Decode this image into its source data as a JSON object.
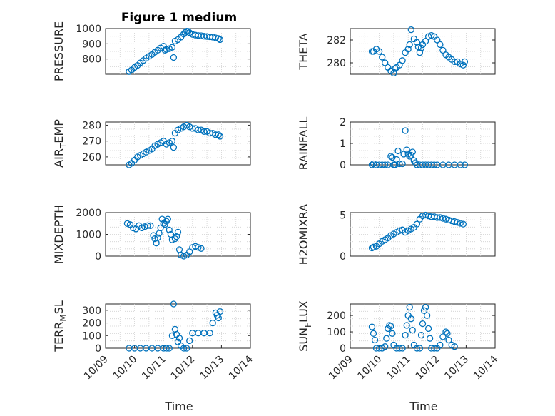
{
  "figure_title": "Figure 1 medium",
  "xlabel": "Time",
  "colors": {
    "marker": "#0072bd",
    "axis": "#262626",
    "grid": "#d0d0d0"
  },
  "chart_data": [
    {
      "type": "scatter",
      "marker": "circle",
      "ylabel": "PRESSURE",
      "ylim": [
        700,
        1000
      ],
      "yticks": [
        800,
        900,
        1000
      ],
      "yticklabels": [
        "800",
        "900",
        "1000"
      ],
      "xlim": [
        "10/09",
        "10/14"
      ],
      "xticks": [],
      "grid": "minor-dotted",
      "points": [
        [
          0.81,
          718
        ],
        [
          0.9,
          728
        ],
        [
          1.0,
          745
        ],
        [
          1.1,
          758
        ],
        [
          1.2,
          775
        ],
        [
          1.3,
          790
        ],
        [
          1.4,
          805
        ],
        [
          1.5,
          818
        ],
        [
          1.6,
          830
        ],
        [
          1.7,
          845
        ],
        [
          1.8,
          858
        ],
        [
          1.9,
          873
        ],
        [
          2.0,
          884
        ],
        [
          2.05,
          858
        ],
        [
          2.1,
          863
        ],
        [
          2.2,
          868
        ],
        [
          2.3,
          877
        ],
        [
          2.35,
          810
        ],
        [
          2.4,
          918
        ],
        [
          2.5,
          928
        ],
        [
          2.6,
          944
        ],
        [
          2.7,
          964
        ],
        [
          2.75,
          975
        ],
        [
          2.8,
          983
        ],
        [
          2.85,
          982
        ],
        [
          2.9,
          973
        ],
        [
          3.0,
          962
        ],
        [
          3.1,
          957
        ],
        [
          3.2,
          954
        ],
        [
          3.3,
          953
        ],
        [
          3.4,
          950
        ],
        [
          3.5,
          948
        ],
        [
          3.6,
          946
        ],
        [
          3.7,
          944
        ],
        [
          3.8,
          939
        ],
        [
          3.9,
          935
        ],
        [
          3.95,
          928
        ]
      ]
    },
    {
      "type": "scatter",
      "marker": "circle",
      "ylabel": "THETA",
      "ylim": [
        279,
        283
      ],
      "yticks": [
        280,
        282
      ],
      "yticklabels": [
        "280",
        "282"
      ],
      "xlim": [
        "10/09",
        "10/14"
      ],
      "xticks": [],
      "grid": "minor-dotted",
      "points": [
        [
          0.75,
          281.0
        ],
        [
          0.8,
          281.0
        ],
        [
          0.9,
          281.2
        ],
        [
          1.0,
          281.0
        ],
        [
          1.1,
          280.5
        ],
        [
          1.2,
          280.0
        ],
        [
          1.3,
          279.6
        ],
        [
          1.4,
          279.3
        ],
        [
          1.5,
          279.1
        ],
        [
          1.55,
          279.5
        ],
        [
          1.6,
          279.6
        ],
        [
          1.7,
          279.8
        ],
        [
          1.8,
          280.2
        ],
        [
          1.9,
          280.9
        ],
        [
          2.0,
          281.2
        ],
        [
          2.05,
          281.6
        ],
        [
          2.1,
          282.9
        ],
        [
          2.2,
          282.1
        ],
        [
          2.3,
          281.8
        ],
        [
          2.35,
          281.4
        ],
        [
          2.4,
          280.9
        ],
        [
          2.45,
          281.3
        ],
        [
          2.5,
          281.6
        ],
        [
          2.6,
          281.9
        ],
        [
          2.7,
          282.3
        ],
        [
          2.8,
          282.4
        ],
        [
          2.9,
          282.3
        ],
        [
          3.0,
          282.0
        ],
        [
          3.1,
          281.6
        ],
        [
          3.2,
          281.1
        ],
        [
          3.3,
          280.7
        ],
        [
          3.4,
          280.5
        ],
        [
          3.5,
          280.3
        ],
        [
          3.6,
          280.1
        ],
        [
          3.7,
          280.1
        ],
        [
          3.8,
          279.9
        ],
        [
          3.9,
          279.8
        ],
        [
          3.95,
          280.1
        ]
      ]
    },
    {
      "type": "scatter",
      "marker": "circle",
      "ylabel": "AIR_TEMP",
      "ylabel_display": [
        "AIR",
        "T",
        "EMP"
      ],
      "ylim": [
        255,
        282
      ],
      "yticks": [
        260,
        270,
        280
      ],
      "yticklabels": [
        "260",
        "270",
        "280"
      ],
      "xlim": [
        "10/09",
        "10/14"
      ],
      "xticks": [],
      "grid": "minor-dotted",
      "points": [
        [
          0.81,
          255
        ],
        [
          0.9,
          256
        ],
        [
          1.0,
          258
        ],
        [
          1.1,
          260
        ],
        [
          1.2,
          261
        ],
        [
          1.3,
          262
        ],
        [
          1.4,
          263
        ],
        [
          1.5,
          264
        ],
        [
          1.6,
          265
        ],
        [
          1.7,
          267
        ],
        [
          1.8,
          268
        ],
        [
          1.9,
          269
        ],
        [
          2.0,
          270
        ],
        [
          2.1,
          268
        ],
        [
          2.2,
          269
        ],
        [
          2.3,
          270
        ],
        [
          2.35,
          266
        ],
        [
          2.4,
          275
        ],
        [
          2.5,
          277
        ],
        [
          2.6,
          278
        ],
        [
          2.7,
          279
        ],
        [
          2.8,
          280
        ],
        [
          2.9,
          279
        ],
        [
          3.0,
          278
        ],
        [
          3.1,
          278
        ],
        [
          3.2,
          277
        ],
        [
          3.3,
          277
        ],
        [
          3.4,
          276
        ],
        [
          3.5,
          276
        ],
        [
          3.6,
          275
        ],
        [
          3.7,
          275
        ],
        [
          3.8,
          274
        ],
        [
          3.9,
          274
        ],
        [
          3.95,
          273
        ]
      ]
    },
    {
      "type": "scatter",
      "marker": "circle",
      "ylabel": "RAINFALL",
      "ylim": [
        0,
        2
      ],
      "yticks": [
        0,
        1,
        2
      ],
      "yticklabels": [
        "0",
        "1",
        "2"
      ],
      "xlim": [
        "10/09",
        "10/14"
      ],
      "xticks": [],
      "grid": "minor-dotted",
      "points": [
        [
          0.75,
          0
        ],
        [
          0.8,
          0.05
        ],
        [
          0.9,
          0
        ],
        [
          1.0,
          0
        ],
        [
          1.1,
          0
        ],
        [
          1.2,
          0
        ],
        [
          1.3,
          0
        ],
        [
          1.4,
          0.4
        ],
        [
          1.45,
          0.35
        ],
        [
          1.5,
          0
        ],
        [
          1.55,
          0
        ],
        [
          1.6,
          0.25
        ],
        [
          1.65,
          0.65
        ],
        [
          1.7,
          0.05
        ],
        [
          1.8,
          0.05
        ],
        [
          1.85,
          0.5
        ],
        [
          1.9,
          1.6
        ],
        [
          1.95,
          0.7
        ],
        [
          2.0,
          0.5
        ],
        [
          2.05,
          0.4
        ],
        [
          2.1,
          0.45
        ],
        [
          2.15,
          0.6
        ],
        [
          2.2,
          0.2
        ],
        [
          2.25,
          0.1
        ],
        [
          2.3,
          0
        ],
        [
          2.4,
          0
        ],
        [
          2.5,
          0
        ],
        [
          2.6,
          0
        ],
        [
          2.7,
          0
        ],
        [
          2.8,
          0
        ],
        [
          2.9,
          0
        ],
        [
          3.0,
          0
        ],
        [
          3.2,
          0
        ],
        [
          3.4,
          0
        ],
        [
          3.6,
          0
        ],
        [
          3.8,
          0
        ],
        [
          3.95,
          0
        ]
      ]
    },
    {
      "type": "scatter",
      "marker": "circle",
      "ylabel": "MIXDEPTH",
      "ylim": [
        0,
        2000
      ],
      "yticks": [
        0,
        1000,
        2000
      ],
      "yticklabels": [
        "0",
        "1000",
        "2000"
      ],
      "xlim": [
        "10/09",
        "10/14"
      ],
      "xticks": [],
      "grid": "minor-dotted",
      "points": [
        [
          0.75,
          1500
        ],
        [
          0.85,
          1450
        ],
        [
          0.95,
          1300
        ],
        [
          1.05,
          1250
        ],
        [
          1.15,
          1400
        ],
        [
          1.25,
          1300
        ],
        [
          1.35,
          1350
        ],
        [
          1.45,
          1400
        ],
        [
          1.55,
          1400
        ],
        [
          1.65,
          950
        ],
        [
          1.7,
          800
        ],
        [
          1.75,
          600
        ],
        [
          1.8,
          850
        ],
        [
          1.85,
          1050
        ],
        [
          1.9,
          1300
        ],
        [
          1.95,
          1700
        ],
        [
          2.0,
          1500
        ],
        [
          2.05,
          1450
        ],
        [
          2.1,
          1600
        ],
        [
          2.15,
          1700
        ],
        [
          2.2,
          1200
        ],
        [
          2.25,
          1000
        ],
        [
          2.3,
          750
        ],
        [
          2.4,
          800
        ],
        [
          2.45,
          900
        ],
        [
          2.5,
          1100
        ],
        [
          2.55,
          300
        ],
        [
          2.6,
          50
        ],
        [
          2.7,
          0
        ],
        [
          2.8,
          50
        ],
        [
          2.9,
          200
        ],
        [
          3.0,
          400
        ],
        [
          3.1,
          450
        ],
        [
          3.2,
          400
        ],
        [
          3.3,
          350
        ]
      ]
    },
    {
      "type": "scatter",
      "marker": "circle",
      "ylabel": "H2OMIXRA",
      "ylim": [
        0,
        5.3
      ],
      "yticks": [
        0,
        5
      ],
      "yticklabels": [
        "0",
        "5"
      ],
      "xlim": [
        "10/09",
        "10/14"
      ],
      "xticks": [],
      "grid": "minor-dotted",
      "points": [
        [
          0.75,
          1.0
        ],
        [
          0.8,
          1.1
        ],
        [
          0.9,
          1.2
        ],
        [
          1.0,
          1.5
        ],
        [
          1.1,
          1.8
        ],
        [
          1.2,
          2.0
        ],
        [
          1.3,
          2.2
        ],
        [
          1.4,
          2.5
        ],
        [
          1.5,
          2.7
        ],
        [
          1.6,
          2.9
        ],
        [
          1.7,
          3.1
        ],
        [
          1.8,
          3.2
        ],
        [
          1.9,
          2.9
        ],
        [
          2.0,
          3.1
        ],
        [
          2.1,
          3.3
        ],
        [
          2.2,
          3.5
        ],
        [
          2.3,
          3.9
        ],
        [
          2.4,
          4.5
        ],
        [
          2.5,
          4.9
        ],
        [
          2.6,
          5.0
        ],
        [
          2.7,
          4.9
        ],
        [
          2.8,
          4.8
        ],
        [
          2.9,
          4.8
        ],
        [
          3.0,
          4.7
        ],
        [
          3.1,
          4.7
        ],
        [
          3.2,
          4.6
        ],
        [
          3.3,
          4.5
        ],
        [
          3.4,
          4.4
        ],
        [
          3.5,
          4.3
        ],
        [
          3.6,
          4.2
        ],
        [
          3.7,
          4.1
        ],
        [
          3.8,
          4.0
        ],
        [
          3.9,
          3.9
        ]
      ]
    },
    {
      "type": "scatter",
      "marker": "circle",
      "ylabel": "TERR_MSL",
      "ylabel_display": [
        "TERR",
        "M",
        "SL"
      ],
      "ylim": [
        0,
        350
      ],
      "yticks": [
        0,
        100,
        200,
        300
      ],
      "yticklabels": [
        "0",
        "100",
        "200",
        "300"
      ],
      "xlim": [
        "10/09",
        "10/14"
      ],
      "xticks": [
        0,
        1,
        2,
        3,
        4,
        5
      ],
      "xticklabels": [
        "10/09",
        "10/10",
        "10/11",
        "10/12",
        "10/13",
        "10/14"
      ],
      "grid": "minor-dotted",
      "points": [
        [
          0.81,
          0
        ],
        [
          1.0,
          0
        ],
        [
          1.2,
          0
        ],
        [
          1.4,
          0
        ],
        [
          1.6,
          0
        ],
        [
          1.8,
          0
        ],
        [
          2.0,
          0
        ],
        [
          2.1,
          0
        ],
        [
          2.2,
          0
        ],
        [
          2.3,
          100
        ],
        [
          2.35,
          350
        ],
        [
          2.4,
          150
        ],
        [
          2.45,
          110
        ],
        [
          2.5,
          50
        ],
        [
          2.55,
          80
        ],
        [
          2.6,
          20
        ],
        [
          2.7,
          0
        ],
        [
          2.8,
          0
        ],
        [
          2.9,
          60
        ],
        [
          3.0,
          120
        ],
        [
          3.2,
          120
        ],
        [
          3.4,
          120
        ],
        [
          3.6,
          120
        ],
        [
          3.7,
          200
        ],
        [
          3.8,
          280
        ],
        [
          3.85,
          260
        ],
        [
          3.9,
          240
        ],
        [
          3.95,
          290
        ]
      ]
    },
    {
      "type": "scatter",
      "marker": "circle",
      "ylabel": "SUN_FLUX",
      "ylabel_display": [
        "SUN",
        "F",
        "LUX"
      ],
      "ylim": [
        0,
        270
      ],
      "yticks": [
        0,
        100,
        200
      ],
      "yticklabels": [
        "0",
        "100",
        "200"
      ],
      "xlim": [
        "10/09",
        "10/14"
      ],
      "xticks": [
        0,
        1,
        2,
        3,
        4,
        5
      ],
      "xticklabels": [
        "10/09",
        "10/10",
        "10/11",
        "10/12",
        "10/13",
        "10/14"
      ],
      "grid": "minor-dotted",
      "points": [
        [
          0.75,
          130
        ],
        [
          0.8,
          90
        ],
        [
          0.85,
          50
        ],
        [
          0.9,
          0
        ],
        [
          1.0,
          0
        ],
        [
          1.1,
          0
        ],
        [
          1.2,
          10
        ],
        [
          1.25,
          60
        ],
        [
          1.3,
          120
        ],
        [
          1.35,
          140
        ],
        [
          1.4,
          135
        ],
        [
          1.45,
          90
        ],
        [
          1.5,
          20
        ],
        [
          1.6,
          0
        ],
        [
          1.7,
          0
        ],
        [
          1.8,
          0
        ],
        [
          1.9,
          80
        ],
        [
          1.95,
          140
        ],
        [
          2.0,
          200
        ],
        [
          2.05,
          250
        ],
        [
          2.1,
          180
        ],
        [
          2.15,
          110
        ],
        [
          2.2,
          20
        ],
        [
          2.3,
          0
        ],
        [
          2.4,
          0
        ],
        [
          2.45,
          80
        ],
        [
          2.5,
          150
        ],
        [
          2.55,
          230
        ],
        [
          2.6,
          250
        ],
        [
          2.65,
          200
        ],
        [
          2.7,
          120
        ],
        [
          2.75,
          60
        ],
        [
          2.8,
          0
        ],
        [
          2.9,
          0
        ],
        [
          3.0,
          0
        ],
        [
          3.1,
          20
        ],
        [
          3.2,
          70
        ],
        [
          3.3,
          100
        ],
        [
          3.35,
          90
        ],
        [
          3.4,
          50
        ],
        [
          3.5,
          20
        ],
        [
          3.6,
          10
        ]
      ]
    }
  ]
}
